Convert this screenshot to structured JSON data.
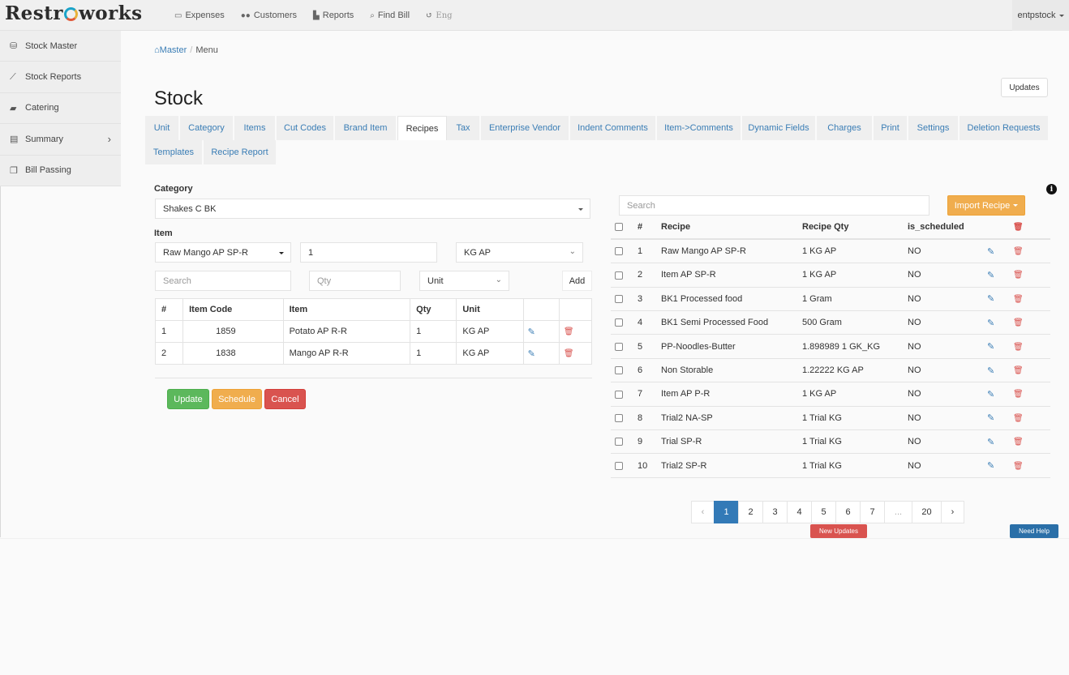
{
  "app": {
    "logo_text": "Restroworks"
  },
  "topnav": {
    "items": [
      {
        "label": "Expenses",
        "icon": "money-icon"
      },
      {
        "label": "Customers",
        "icon": "users-icon"
      },
      {
        "label": "Reports",
        "icon": "chart-icon"
      },
      {
        "label": "Find Bill",
        "icon": "search-icon"
      },
      {
        "label": "Eng",
        "icon": "language-icon"
      }
    ],
    "user": "entpstock"
  },
  "sidebar": {
    "items": [
      {
        "label": "Stock Master",
        "icon": "cubes-icon"
      },
      {
        "label": "Stock Reports",
        "icon": "line-chart-icon"
      },
      {
        "label": "Catering",
        "icon": "truck-icon"
      },
      {
        "label": "Summary",
        "icon": "book-icon"
      },
      {
        "label": "Bill Passing",
        "icon": "copy-icon"
      }
    ]
  },
  "breadcrumb": {
    "home": "Master",
    "current": "Menu"
  },
  "header": {
    "title": "Stock",
    "updates_label": "Updates"
  },
  "tabs": [
    {
      "label": "Unit"
    },
    {
      "label": "Category"
    },
    {
      "label": "Items"
    },
    {
      "label": "Cut Codes"
    },
    {
      "label": "Brand Item"
    },
    {
      "label": "Recipes",
      "active": true
    },
    {
      "label": "Tax"
    },
    {
      "label": "Enterprise Vendor"
    },
    {
      "label": "Indent Comments"
    },
    {
      "label": "Item->Comments"
    },
    {
      "label": "Dynamic Fields"
    },
    {
      "label": "Charges"
    },
    {
      "label": "Print"
    },
    {
      "label": "Settings"
    },
    {
      "label": "Deletion Requests"
    },
    {
      "label": "Templates"
    },
    {
      "label": "Recipe Report"
    }
  ],
  "form": {
    "category_label": "Category",
    "category_value": "Shakes C BK",
    "item_label": "Item",
    "item_value": "Raw Mango AP SP-R",
    "qty_value": "1",
    "unit_value": "KG AP",
    "search_placeholder": "Search",
    "qty_placeholder": "Qty",
    "unit_placeholder": "Unit",
    "add_label": "Add"
  },
  "items_table": {
    "headers": [
      "#",
      "Item Code",
      "Item",
      "Qty",
      "Unit"
    ],
    "rows": [
      {
        "n": "1",
        "code": "1859",
        "item": "Potato AP R-R",
        "qty": "1",
        "unit": "KG AP"
      },
      {
        "n": "2",
        "code": "1838",
        "item": "Mango AP R-R",
        "qty": "1",
        "unit": "KG AP"
      }
    ]
  },
  "actions": {
    "update": "Update",
    "schedule": "Schedule",
    "cancel": "Cancel"
  },
  "recipes": {
    "search_placeholder": "Search",
    "import_label": "Import Recipe",
    "headers": [
      "#",
      "Recipe",
      "Recipe Qty",
      "is_scheduled"
    ],
    "rows": [
      {
        "n": "1",
        "recipe": "Raw Mango AP SP-R",
        "qty": "1 KG AP",
        "sched": "NO"
      },
      {
        "n": "2",
        "recipe": "Item AP SP-R",
        "qty": "1 KG AP",
        "sched": "NO"
      },
      {
        "n": "3",
        "recipe": "BK1 Processed food",
        "qty": "1 Gram",
        "sched": "NO"
      },
      {
        "n": "4",
        "recipe": "BK1 Semi Processed Food",
        "qty": "500 Gram",
        "sched": "NO"
      },
      {
        "n": "5",
        "recipe": "PP-Noodles-Butter",
        "qty": "1.898989 1 GK_KG",
        "sched": "NO"
      },
      {
        "n": "6",
        "recipe": "Non Storable",
        "qty": "1.22222 KG AP",
        "sched": "NO"
      },
      {
        "n": "7",
        "recipe": "Item AP P-R",
        "qty": "1 KG AP",
        "sched": "NO"
      },
      {
        "n": "8",
        "recipe": "Trial2 NA-SP",
        "qty": "1 Trial KG",
        "sched": "NO"
      },
      {
        "n": "9",
        "recipe": "Trial SP-R",
        "qty": "1 Trial KG",
        "sched": "NO"
      },
      {
        "n": "10",
        "recipe": "Trial2 SP-R",
        "qty": "1 Trial KG",
        "sched": "NO"
      }
    ]
  },
  "pagination": {
    "prev": "‹",
    "pages": [
      "1",
      "2",
      "3",
      "4",
      "5",
      "6",
      "7",
      "...",
      "20"
    ],
    "current": "1",
    "next": "›"
  },
  "footer": {
    "new_updates": "New Updates",
    "need_help": "Need Help"
  }
}
